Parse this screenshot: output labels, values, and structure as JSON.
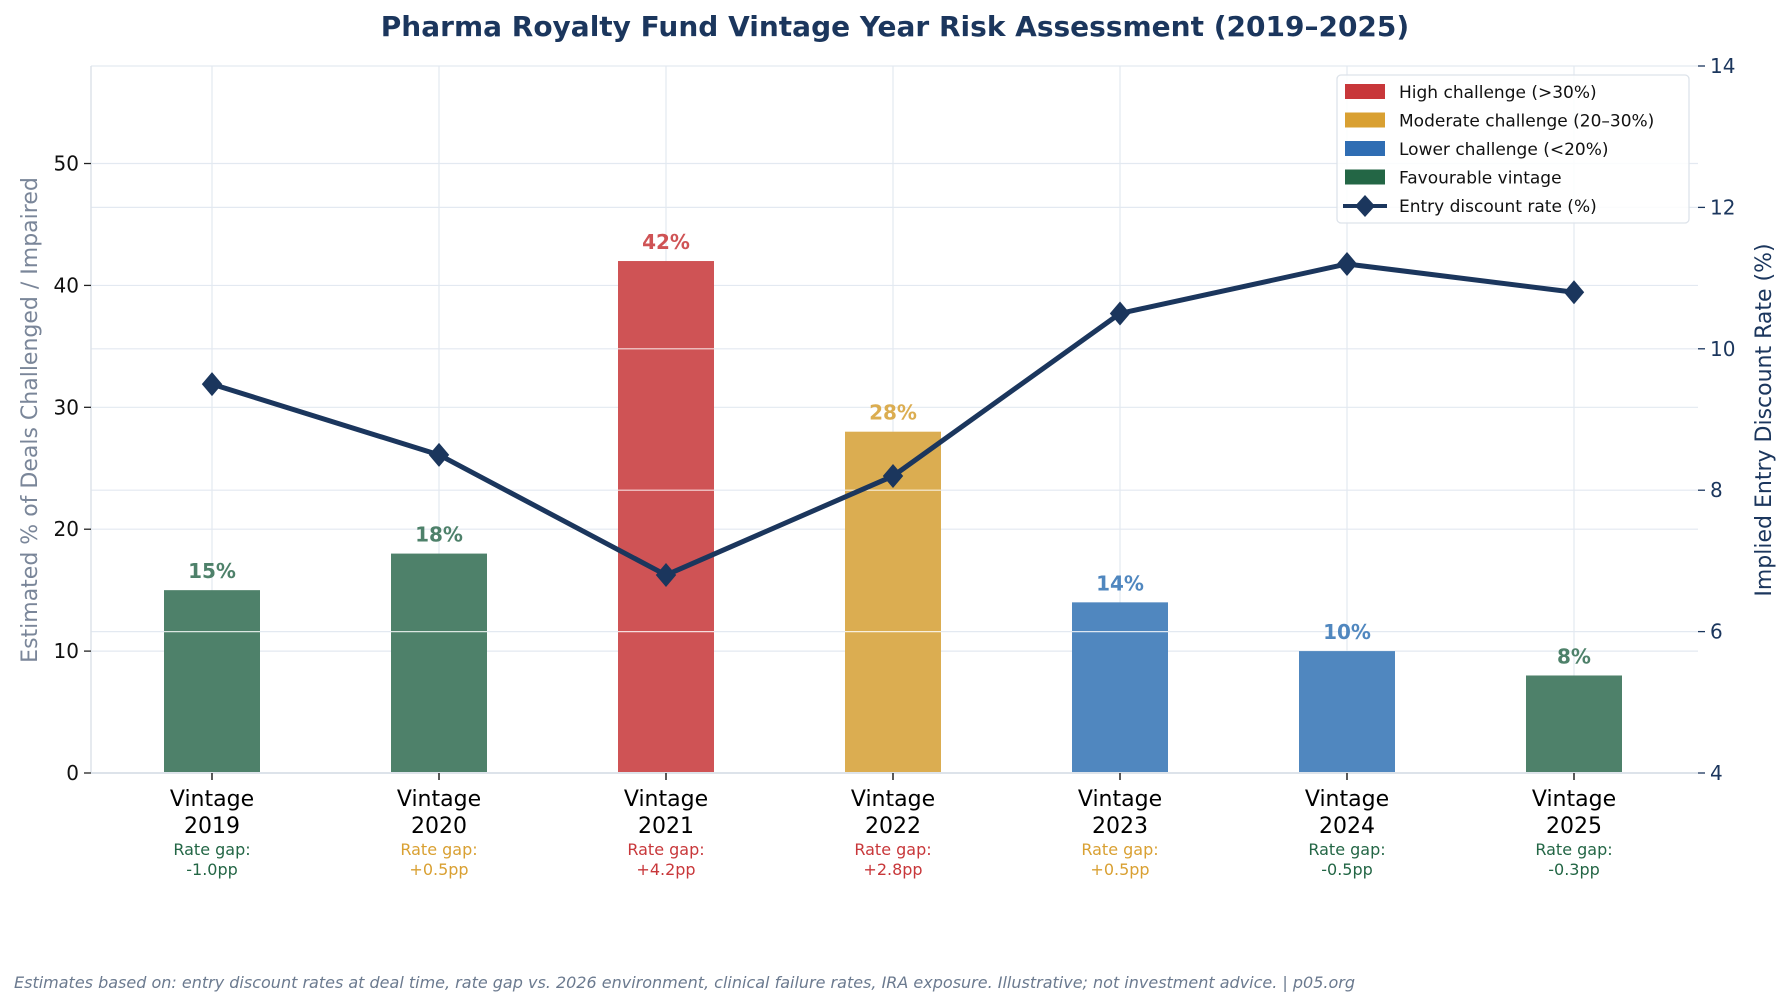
{
  "chart_data": {
    "type": "bar",
    "title": "Pharma Royalty Fund Vintage Year Risk Assessment (2019–2025)",
    "xlabel": "",
    "ylabel": "Estimated % of Deals Challenged / Impaired",
    "ylabel_right": "Implied Entry Discount Rate (%)",
    "ylim": [
      0,
      58
    ],
    "ylim_right": [
      4,
      14
    ],
    "yticks": [
      0,
      10,
      20,
      30,
      40,
      50
    ],
    "yticks_right": [
      4,
      6,
      8,
      10,
      12,
      14
    ],
    "grid": true,
    "legend_position": "top-right",
    "categories": [
      {
        "line1": "Vintage",
        "line2": "2019"
      },
      {
        "line1": "Vintage",
        "line2": "2020"
      },
      {
        "line1": "Vintage",
        "line2": "2021"
      },
      {
        "line1": "Vintage",
        "line2": "2022"
      },
      {
        "line1": "Vintage",
        "line2": "2023"
      },
      {
        "line1": "Vintage",
        "line2": "2024"
      },
      {
        "line1": "Vintage",
        "line2": "2025"
      }
    ],
    "series": [
      {
        "name": "Estimated % of Deals Challenged / Impaired",
        "type": "bar",
        "axis": "left",
        "values": [
          15,
          18,
          42,
          28,
          14,
          10,
          8
        ],
        "labels": [
          "15%",
          "18%",
          "42%",
          "28%",
          "14%",
          "10%",
          "8%"
        ],
        "risk_class": [
          "favourable",
          "favourable",
          "high",
          "moderate",
          "lower",
          "lower",
          "favourable"
        ]
      },
      {
        "name": "Entry discount rate (%)",
        "type": "line",
        "axis": "right",
        "marker": "diamond",
        "values": [
          9.5,
          8.5,
          6.8,
          8.2,
          10.5,
          11.2,
          10.8
        ]
      }
    ],
    "rate_gaps": [
      {
        "label": "Rate gap:",
        "value": "-1.0pp",
        "class": "favourable"
      },
      {
        "label": "Rate gap:",
        "value": "+0.5pp",
        "class": "moderate"
      },
      {
        "label": "Rate gap:",
        "value": "+4.2pp",
        "class": "high"
      },
      {
        "label": "Rate gap:",
        "value": "+2.8pp",
        "class": "high"
      },
      {
        "label": "Rate gap:",
        "value": "+0.5pp",
        "class": "moderate"
      },
      {
        "label": "Rate gap:",
        "value": "-0.5pp",
        "class": "favourable"
      },
      {
        "label": "Rate gap:",
        "value": "-0.3pp",
        "class": "favourable"
      }
    ],
    "legend": [
      {
        "label": "High challenge (>30%)",
        "class": "high",
        "kind": "patch"
      },
      {
        "label": "Moderate challenge (20–30%)",
        "class": "moderate",
        "kind": "patch"
      },
      {
        "label": "Lower challenge (<20%)",
        "class": "lower",
        "kind": "patch"
      },
      {
        "label": "Favourable vintage",
        "class": "favourable",
        "kind": "patch"
      },
      {
        "label": "Entry discount rate (%)",
        "class": "line",
        "kind": "line"
      }
    ],
    "colors": {
      "high": "#c8373a",
      "moderate": "#d9a032",
      "lower": "#2f6db3",
      "favourable": "#236645",
      "line": "#1b365d",
      "title": "#1b365d"
    },
    "footnote": "Estimates based on: entry discount rates at deal time, rate gap vs. 2026 environment, clinical failure rates, IRA exposure. Illustrative; not investment advice. | p05.org"
  }
}
